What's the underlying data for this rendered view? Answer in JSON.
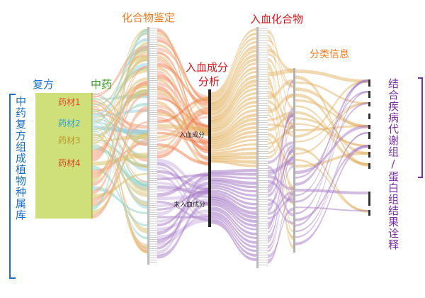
{
  "headers": {
    "formula": "复方",
    "herb": "中药",
    "identification": "化合物鉴定",
    "absorption_line1": "入血成分",
    "absorption_line2": "分析",
    "absorbed_compounds": "入血化合物",
    "classification": "分类信息"
  },
  "left_panel_text": "中药复方组成植物种属库",
  "right_panel_text": "结合疾病代谢组/蛋白组结果诠释",
  "herbs": [
    {
      "label": "药材1",
      "color": "#e8452c"
    },
    {
      "label": "药材2",
      "color": "#2e9fd6"
    },
    {
      "label": "药材3",
      "color": "#b89a2a"
    },
    {
      "label": "药材4",
      "color": "#d4451f"
    }
  ],
  "absorption_nodes": [
    {
      "label": "入血成分"
    },
    {
      "label": "未入血成分"
    }
  ],
  "colors": {
    "blue": "#1a6ec7",
    "green": "#2f9a1f",
    "orange": "#ee7a1f",
    "red": "#d6141c",
    "purple": "#7b2fa6",
    "herb_block": "#cfe07a",
    "flow_orange": "#f07a45",
    "flow_tan": "#e2b262",
    "flow_purple": "#a679c4",
    "flow_teal": "#8fd3c8",
    "node_dark": "#3a3a3a"
  }
}
